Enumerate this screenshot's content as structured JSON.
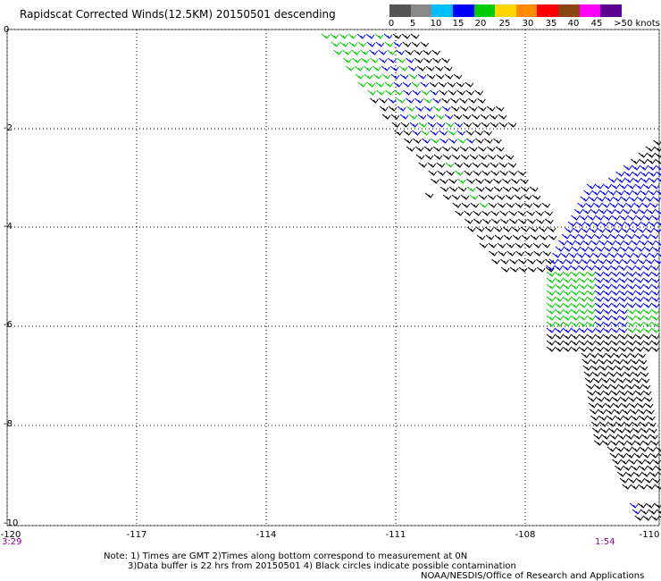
{
  "title": "Rapidscat Corrected Winds(12.5KM) 20150501 descending",
  "scale": {
    "labels": [
      "0",
      "5",
      "10",
      "15",
      "20",
      "25",
      "30",
      "35",
      "40",
      "45",
      ">50 knots"
    ],
    "colors": [
      "#555555",
      "#888888",
      "#00bfff",
      "#0000ff",
      "#00cc00",
      "#ffd700",
      "#ff8c00",
      "#ff0000",
      "#8b4513",
      "#ff00ff",
      "#5b0090"
    ]
  },
  "axes": {
    "y_labels": [
      "0",
      "-2",
      "-4",
      "-6",
      "-8",
      "-10"
    ],
    "x_labels": [
      "-120",
      "-117",
      "-114",
      "-111",
      "-108",
      "-110"
    ],
    "time_left": "3:29",
    "time_right": "1:54"
  },
  "colors": {
    "black": "#000000",
    "blue": "#0000ff",
    "green": "#00cc00",
    "grid": "#000000"
  },
  "notes": {
    "line1": "Note: 1) Times are GMT 2)Times along bottom correspond to measurement at 0N",
    "line2": "3)Data buffer is 22 hrs from 20150501 4) Black circles indicate possible contamination",
    "line3": "NOAA/NESDIS/Office of Research and Applications"
  }
}
